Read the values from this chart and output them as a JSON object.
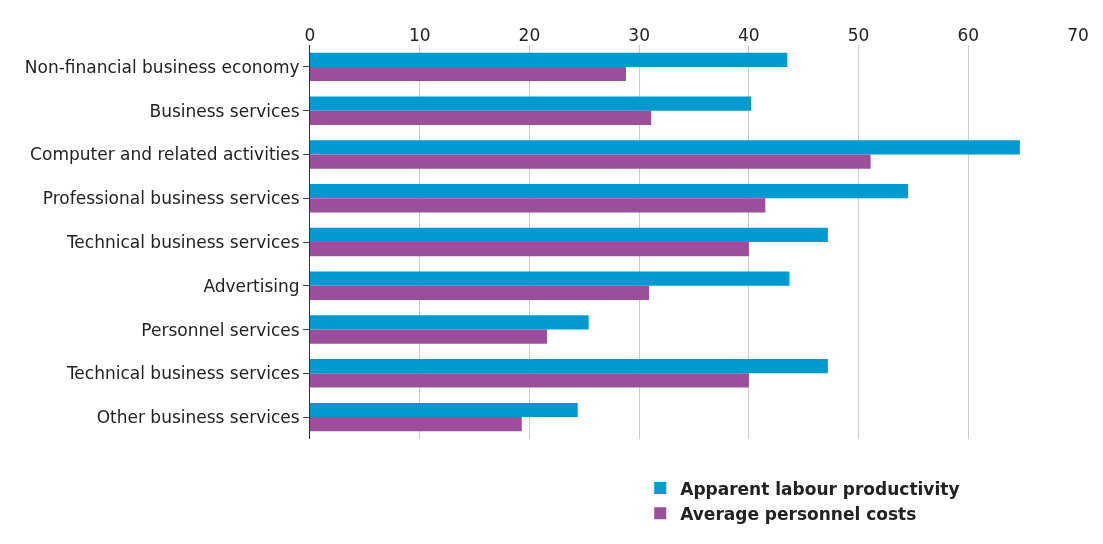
{
  "chart_data": {
    "type": "bar",
    "orientation": "horizontal",
    "categories": [
      "Non-financial business economy",
      "Business services",
      "Computer and related activities",
      "Professional business services",
      "Technical business services",
      "Advertising",
      "Personnel services",
      "Technical business services",
      "Other business services"
    ],
    "series": [
      {
        "name": "Apparent labour productivity",
        "color": "#0099d0",
        "values": [
          43.5,
          40.2,
          64.7,
          54.5,
          47.2,
          43.7,
          25.4,
          47.2,
          24.4
        ]
      },
      {
        "name": "Average personnel costs",
        "color": "#9b4f9b",
        "values": [
          28.8,
          31.1,
          51.1,
          41.5,
          40.0,
          30.9,
          21.6,
          40.0,
          19.3
        ]
      }
    ],
    "xlim": [
      0,
      70
    ],
    "xticks": [
      0,
      10,
      20,
      30,
      40,
      50,
      60,
      70
    ],
    "grid": "x",
    "legend": "bottom"
  }
}
